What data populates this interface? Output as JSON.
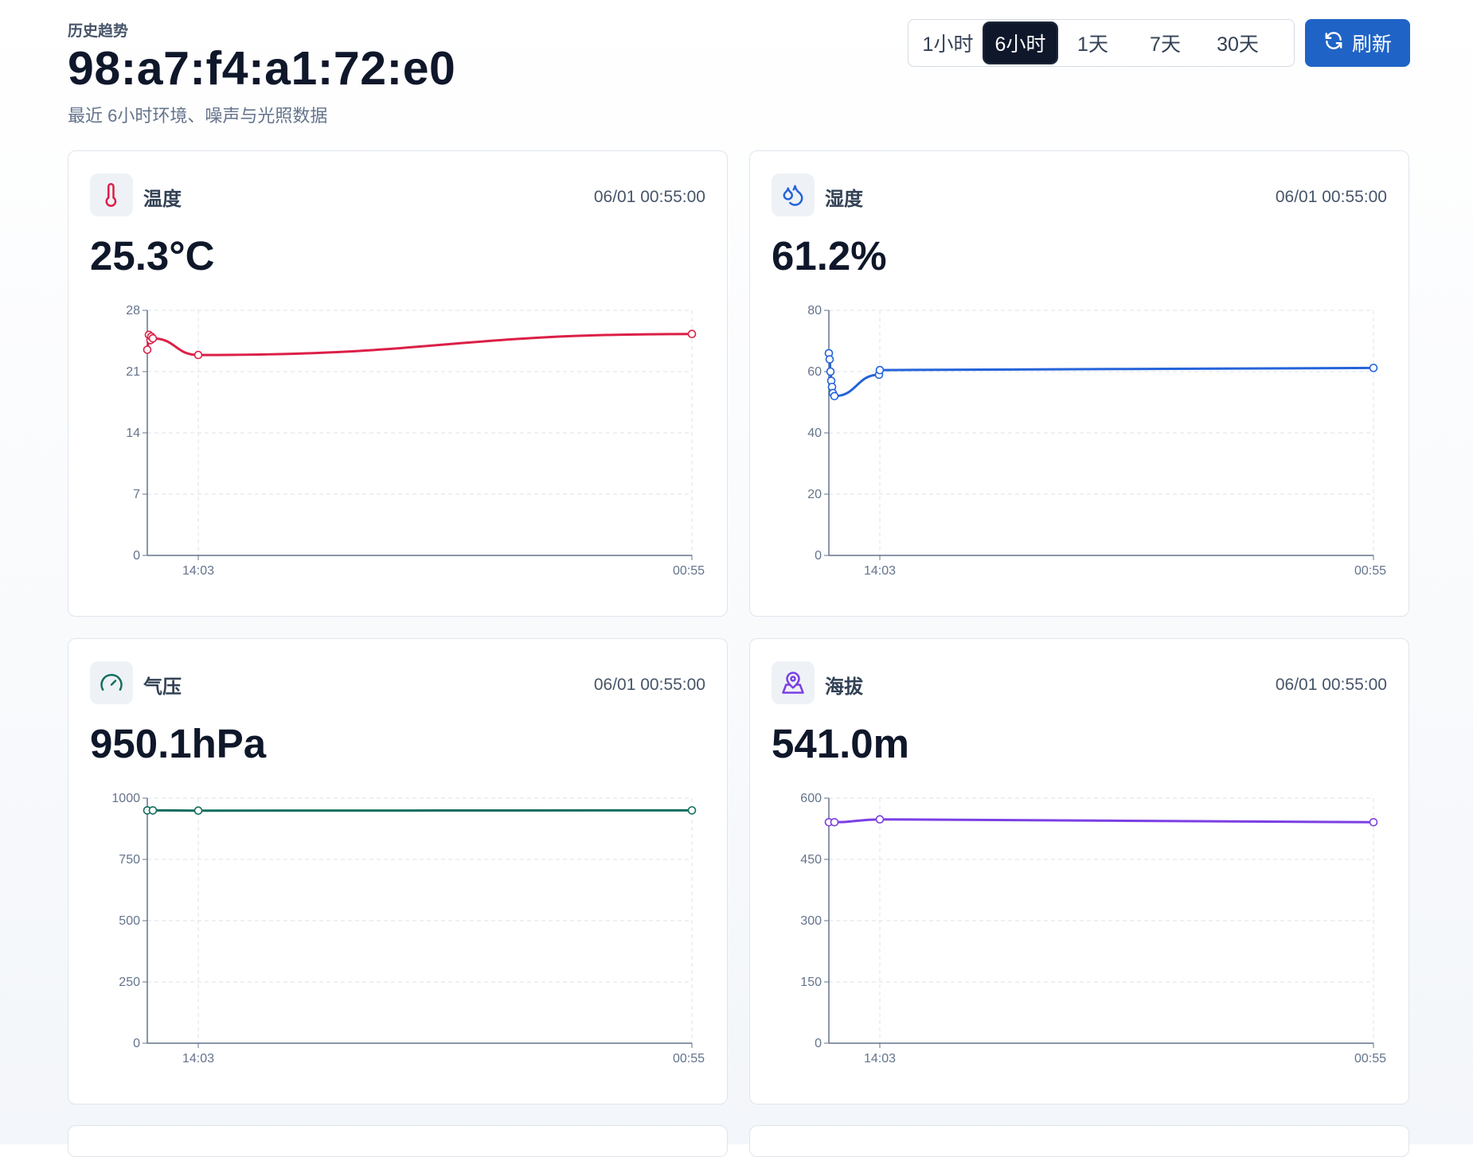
{
  "header": {
    "kicker": "历史趋势",
    "device": "98:a7:f4:a1:72:e0",
    "subtitle": "最近 6小时环境、噪声与光照数据"
  },
  "ranges": [
    {
      "label": "1小时",
      "active": false
    },
    {
      "label": "6小时",
      "active": true
    },
    {
      "label": "1天",
      "active": false
    },
    {
      "label": "7天",
      "active": false
    },
    {
      "label": "30天",
      "active": false
    }
  ],
  "refresh": {
    "label": "刷新",
    "icon": "refresh-icon"
  },
  "cards": [
    {
      "id": "temperature",
      "title": "温度",
      "icon": "thermometer-icon",
      "time": "06/01 00:55:00",
      "value": "25.3°C",
      "color": "#dc1f47",
      "chart_data": {
        "type": "line",
        "x_ticks": [
          "14:03",
          "00:55"
        ],
        "y_ticks": [
          "0",
          "7",
          "14",
          "21",
          "28"
        ],
        "ylim": [
          0,
          28
        ],
        "series": [
          {
            "values": [
              23.5,
              25.2,
              24.6,
              25.0,
              24.8,
              22.9,
              25.3
            ]
          }
        ]
      }
    },
    {
      "id": "humidity",
      "title": "湿度",
      "icon": "droplets-icon",
      "time": "06/01 00:55:00",
      "value": "61.2%",
      "color": "#2563d9",
      "chart_data": {
        "type": "line",
        "x_ticks": [
          "14:03",
          "00:55"
        ],
        "y_ticks": [
          "0",
          "20",
          "40",
          "60",
          "80"
        ],
        "ylim": [
          0,
          80
        ],
        "series": [
          {
            "values": [
              66,
              64,
              60,
              57,
              55,
              53,
              52,
              59,
              60.5,
              61.2
            ]
          }
        ]
      }
    },
    {
      "id": "pressure",
      "title": "气压",
      "icon": "gauge-icon",
      "time": "06/01 00:55:00",
      "value": "950.1hPa",
      "color": "#136e5e",
      "chart_data": {
        "type": "line",
        "x_ticks": [
          "14:03",
          "00:55"
        ],
        "y_ticks": [
          "0",
          "250",
          "500",
          "750",
          "1000"
        ],
        "ylim": [
          0,
          1000
        ],
        "series": [
          {
            "values": [
              950,
              950,
              949,
              950.1
            ]
          }
        ]
      }
    },
    {
      "id": "altitude",
      "title": "海拔",
      "icon": "map-pin-icon",
      "time": "06/01 00:55:00",
      "value": "541.0m",
      "color": "#7b3fe4",
      "chart_data": {
        "type": "line",
        "x_ticks": [
          "14:03",
          "00:55"
        ],
        "y_ticks": [
          "0",
          "150",
          "300",
          "450",
          "600"
        ],
        "ylim": [
          0,
          600
        ],
        "series": [
          {
            "values": [
              541,
              541,
              548,
              541
            ]
          }
        ]
      }
    }
  ]
}
